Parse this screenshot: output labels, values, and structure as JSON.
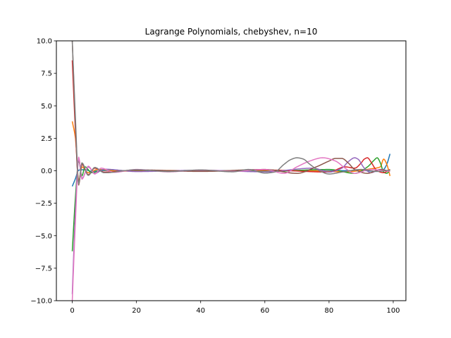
{
  "chart_data": {
    "type": "line",
    "title": "Lagrange Polynomials, chebyshev, n=10",
    "xlabel": "",
    "ylabel": "",
    "xlim": [
      -4.95,
      103.95
    ],
    "ylim": [
      -10.0,
      10.0
    ],
    "xticks": [
      0,
      20,
      40,
      60,
      80,
      100
    ],
    "xtick_labels": [
      "0",
      "20",
      "40",
      "60",
      "80",
      "100"
    ],
    "yticks": [
      -10.0,
      -7.5,
      -5.0,
      -2.5,
      0.0,
      2.5,
      5.0,
      7.5,
      10.0
    ],
    "ytick_labels": [
      "−10.0",
      "−7.5",
      "−5.0",
      "−2.5",
      "0.0",
      "2.5",
      "5.0",
      "7.5",
      "10.0"
    ],
    "grid": false,
    "legend": "none",
    "x_range": [
      0,
      99
    ],
    "series": [
      {
        "color": "#1f77b4",
        "x": [
          0,
          1,
          2,
          4,
          6,
          10,
          20,
          40,
          60,
          80,
          90,
          95,
          97,
          98,
          99
        ],
        "values": [
          -1.2,
          -0.6,
          0.05,
          0.08,
          -0.04,
          0.02,
          0.0,
          0.0,
          0.0,
          0.0,
          0.02,
          -0.05,
          0.1,
          0.5,
          1.3
        ]
      },
      {
        "color": "#ff7f0e",
        "x": [
          0,
          1,
          2,
          3,
          5,
          8,
          15,
          30,
          50,
          70,
          85,
          93,
          96,
          97,
          98,
          99
        ],
        "values": [
          3.8,
          2.5,
          -0.8,
          0.3,
          -0.15,
          0.1,
          -0.03,
          0.02,
          -0.02,
          0.03,
          -0.08,
          0.15,
          0.3,
          0.9,
          0.5,
          -0.4
        ]
      },
      {
        "color": "#2ca02c",
        "x": [
          0,
          1,
          2,
          3,
          4,
          6,
          10,
          20,
          40,
          60,
          80,
          88,
          92,
          94,
          95,
          96,
          97,
          98,
          99
        ],
        "values": [
          -6.2,
          -2.0,
          0.8,
          -0.4,
          0.3,
          -0.15,
          0.1,
          -0.04,
          0.03,
          -0.05,
          0.1,
          -0.2,
          0.3,
          0.8,
          1.0,
          0.6,
          -0.1,
          -0.2,
          0.1
        ]
      },
      {
        "color": "#d62728",
        "x": [
          0,
          1,
          2,
          3,
          5,
          7,
          10,
          20,
          40,
          60,
          80,
          85,
          88,
          90,
          91,
          92,
          93,
          95,
          97,
          99
        ],
        "values": [
          8.5,
          3.0,
          -1.0,
          0.5,
          -0.3,
          0.2,
          -0.1,
          0.05,
          -0.04,
          0.06,
          -0.1,
          0.3,
          0.2,
          0.6,
          0.9,
          1.0,
          0.7,
          0.0,
          -0.15,
          0.1
        ]
      },
      {
        "color": "#9467bd",
        "x": [
          0,
          1,
          2,
          3,
          5,
          7,
          10,
          20,
          40,
          60,
          75,
          80,
          84,
          86,
          88,
          89,
          91,
          93,
          96,
          99
        ],
        "values": [
          -9.5,
          -3.0,
          1.0,
          -0.6,
          0.3,
          -0.2,
          0.12,
          -0.06,
          0.04,
          -0.08,
          0.2,
          -0.1,
          0.2,
          0.7,
          1.0,
          0.9,
          0.2,
          -0.15,
          0.1,
          -0.05
        ]
      },
      {
        "color": "#8c564b",
        "x": [
          0,
          1,
          2,
          3,
          5,
          7,
          10,
          20,
          40,
          60,
          70,
          76,
          80,
          82,
          84,
          86,
          88,
          92,
          96,
          99
        ],
        "values": [
          10.0,
          3.5,
          -1.1,
          0.6,
          -0.35,
          0.25,
          -0.15,
          0.07,
          -0.05,
          0.1,
          -0.2,
          0.3,
          0.75,
          0.95,
          0.95,
          0.6,
          0.1,
          -0.2,
          0.1,
          -0.05
        ]
      },
      {
        "color": "#e377c2",
        "x": [
          0,
          1,
          2,
          3,
          5,
          7,
          9,
          13,
          20,
          30,
          40,
          50,
          60,
          66,
          70,
          74,
          78,
          82,
          85,
          88,
          93,
          99
        ],
        "values": [
          -10.0,
          -3.8,
          1.05,
          -0.65,
          0.35,
          -0.25,
          0.2,
          -0.12,
          0.1,
          -0.08,
          0.06,
          -0.05,
          0.1,
          -0.2,
          0.3,
          0.75,
          1.0,
          0.75,
          0.2,
          -0.2,
          0.1,
          -0.05
        ]
      },
      {
        "color": "#7f7f7f",
        "x": [
          0,
          1,
          2,
          3,
          5,
          7,
          10,
          20,
          30,
          40,
          50,
          55,
          60,
          63,
          66,
          68,
          70,
          72,
          74,
          77,
          80,
          84,
          90,
          95,
          99
        ],
        "values": [
          10.0,
          4.0,
          -1.0,
          0.6,
          -0.35,
          0.25,
          -0.15,
          0.08,
          -0.06,
          0.06,
          -0.08,
          0.1,
          -0.18,
          -0.1,
          0.5,
          0.85,
          1.0,
          0.9,
          0.5,
          0.0,
          -0.25,
          -0.1,
          0.1,
          -0.05,
          0.05
        ]
      }
    ]
  }
}
